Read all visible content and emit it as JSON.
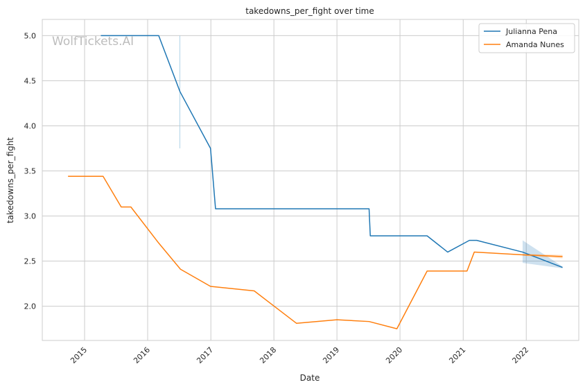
{
  "chart_data": {
    "type": "line",
    "title": "takedowns_per_fight over time",
    "xlabel": "Date",
    "ylabel": "takedowns_per_fight",
    "watermark": "WolfTickets.AI",
    "x_ticks": [
      "2015",
      "2016",
      "2017",
      "2018",
      "2019",
      "2020",
      "2021",
      "2022"
    ],
    "y_ticks": [
      "2.0",
      "2.5",
      "3.0",
      "3.5",
      "4.0",
      "4.5",
      "5.0"
    ],
    "xlim": [
      "2014-05-01",
      "2022-11-01"
    ],
    "ylim": [
      1.62,
      5.18
    ],
    "grid": true,
    "legend_position": "top-right",
    "series": [
      {
        "name": "Julianna Pena",
        "color": "#1f77b4",
        "points": [
          [
            "2015-04-05",
            5.0
          ],
          [
            "2016-03-05",
            5.0
          ],
          [
            "2016-07-06",
            4.38
          ],
          [
            "2016-12-30",
            3.75
          ],
          [
            "2017-01-28",
            3.08
          ],
          [
            "2019-07-06",
            3.08
          ],
          [
            "2019-07-13",
            2.78
          ],
          [
            "2020-06-06",
            2.78
          ],
          [
            "2020-10-03",
            2.6
          ],
          [
            "2021-02-06",
            2.73
          ],
          [
            "2021-03-20",
            2.73
          ],
          [
            "2021-12-11",
            2.6
          ],
          [
            "2022-07-30",
            2.43
          ]
        ],
        "band": [
          [
            "2021-12-11",
            2.48,
            2.73
          ],
          [
            "2022-07-30",
            2.42,
            2.44
          ]
        ]
      },
      {
        "name": "Amanda Nunes",
        "color": "#ff7f0e",
        "points": [
          [
            "2014-09-27",
            3.44
          ],
          [
            "2015-04-18",
            3.44
          ],
          [
            "2015-08-01",
            3.1
          ],
          [
            "2015-09-26",
            3.1
          ],
          [
            "2016-03-05",
            2.7
          ],
          [
            "2016-07-09",
            2.41
          ],
          [
            "2016-12-30",
            2.22
          ],
          [
            "2017-09-09",
            2.17
          ],
          [
            "2018-05-12",
            1.81
          ],
          [
            "2019-01-01",
            1.85
          ],
          [
            "2019-07-06",
            1.83
          ],
          [
            "2019-12-14",
            1.75
          ],
          [
            "2020-06-06",
            2.39
          ],
          [
            "2021-01-23",
            2.39
          ],
          [
            "2021-03-06",
            2.6
          ],
          [
            "2021-12-11",
            2.57
          ],
          [
            "2022-07-30",
            2.55
          ]
        ],
        "band": [
          [
            "2021-12-11",
            2.56,
            2.58
          ],
          [
            "2022-07-30",
            2.53,
            2.57
          ]
        ]
      }
    ],
    "faint_artifacts": [
      {
        "color": "#9ecae1",
        "points": [
          [
            "2016-07-06",
            3.75
          ],
          [
            "2016-07-06",
            5.0
          ]
        ]
      }
    ]
  }
}
